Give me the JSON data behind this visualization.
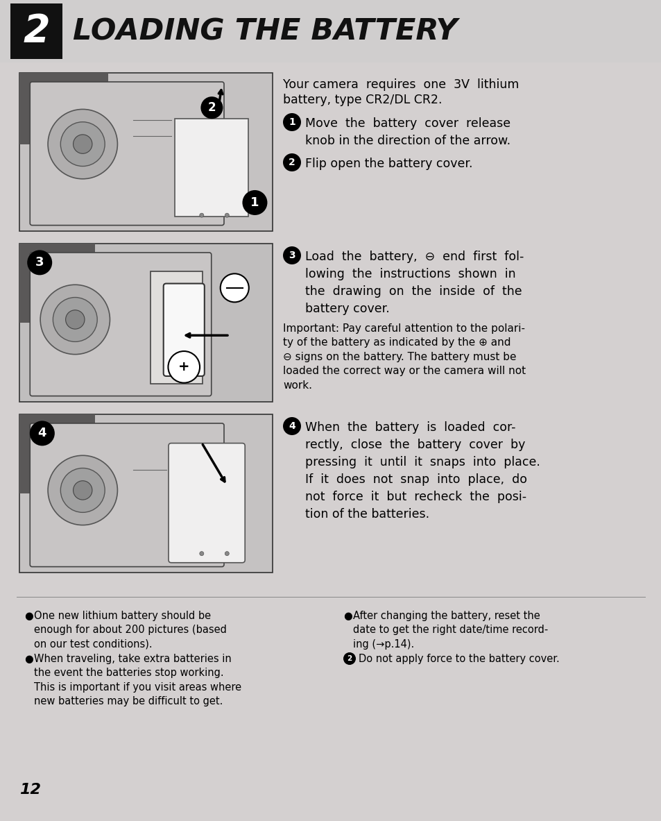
{
  "bg_color": "#d4d0d0",
  "header_bg_color": "#d0cece",
  "header_box_color": "#1a1a1a",
  "header_number": "2",
  "header_title": "LOADING THE BATTERY",
  "page_number": "12",
  "intro_text_line1": "Your camera  requires  one  3V  lithium",
  "intro_text_line2": "battery, type CR2/DL CR2.",
  "step1_text": "Move  the  battery  cover  release\nknob in the direction of the arrow.",
  "step2_text": "Flip open the battery cover.",
  "step3_text": "Load  the  battery,  ⊖  end  first  fol-\nlowing  the  instructions  shown  in\nthe  drawing  on  the  inside  of  the\nbattery cover.",
  "step4_text": "When  the  battery  is  loaded  cor-\nrectly,  close  the  battery  cover  by\npressing  it  until  it  snaps  into  place.\nIf  it  does  not  snap  into  place,  do\nnot  force  it  but  recheck  the  posi-\ntion of the batteries.",
  "important_text": "Important: Pay careful attention to the polari-\nty of the battery as indicated by the ⊕ and\n⊖ signs on the battery. The battery must be\nloaded the correct way or the camera will not\nwork.",
  "bullet1": "One new lithium battery should be\nenough for about 200 pictures (based\non our test conditions).",
  "bullet2": "When traveling, take extra batteries in\nthe event the batteries stop working.\nThis is important if you visit areas where\nnew batteries may be difficult to get.",
  "bullet3": "After changing the battery, reset the\ndate to get the right date/time record-\ning (→p.14).",
  "bullet4": "Do not apply force to the battery cover.",
  "img_bg": "#c0bebe",
  "img_border": "#888888"
}
